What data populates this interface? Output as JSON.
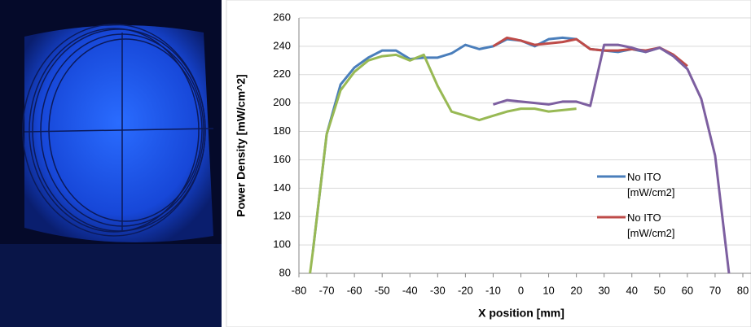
{
  "chart_data": {
    "type": "line",
    "x_label": "X position  [mm]",
    "y_label": "Power Density [mW/cm^2]",
    "xlim": [
      -80,
      80
    ],
    "ylim": [
      80,
      260
    ],
    "xticks": [
      -80,
      -70,
      -60,
      -50,
      -40,
      -30,
      -20,
      -10,
      0,
      10,
      20,
      30,
      40,
      50,
      60,
      70,
      80
    ],
    "yticks": [
      80,
      100,
      120,
      140,
      160,
      180,
      200,
      220,
      240,
      260
    ],
    "grid": true,
    "series": [
      {
        "name": "No ITO [mW/cm2]",
        "color": "#4a7ebb",
        "x": [
          -75,
          -70,
          -65,
          -60,
          -55,
          -50,
          -45,
          -40,
          -35,
          -30,
          -25,
          -20,
          -15,
          -10,
          -5,
          0,
          5,
          10,
          15,
          20,
          25,
          30,
          35,
          40,
          45,
          50,
          55,
          60
        ],
        "values": [
          95,
          178,
          213,
          225,
          232,
          237,
          237,
          231,
          232,
          232,
          235,
          241,
          238,
          240,
          245,
          244,
          240,
          245,
          246,
          245,
          238,
          237,
          236,
          238,
          236,
          239,
          233,
          224
        ]
      },
      {
        "name": "No ITO [mW/cm2]",
        "color": "#be4b48",
        "x": [
          -10,
          -5,
          0,
          5,
          10,
          15,
          20,
          25,
          30,
          35,
          40,
          45,
          50,
          55,
          60
        ],
        "values": [
          240,
          246,
          244,
          241,
          242,
          243,
          245,
          238,
          237,
          237,
          238,
          237,
          239,
          234,
          226
        ]
      },
      {
        "color": "#98b954",
        "x": [
          -76,
          -75,
          -70,
          -65,
          -60,
          -55,
          -50,
          -45,
          -40,
          -35,
          -30,
          -25,
          -20,
          -15,
          -10,
          -5,
          0,
          5,
          10,
          15,
          20
        ],
        "values": [
          80,
          95,
          178,
          209,
          222,
          230,
          233,
          234,
          230,
          234,
          212,
          194,
          191,
          188,
          191,
          194,
          196,
          196,
          194,
          195,
          196
        ]
      },
      {
        "color": "#7d5fa0",
        "x": [
          -10,
          -5,
          0,
          5,
          10,
          15,
          20,
          25,
          30,
          35,
          40,
          45,
          50,
          55,
          60,
          65,
          70,
          75
        ],
        "values": [
          199,
          202,
          201,
          200,
          199,
          201,
          201,
          198,
          241,
          241,
          239,
          236,
          239,
          233,
          224,
          203,
          163,
          80
        ]
      }
    ]
  }
}
